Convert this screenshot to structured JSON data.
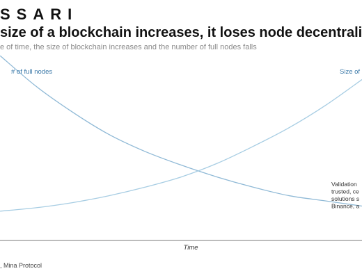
{
  "header": {
    "brand": "SSARI",
    "title": "size of a blockchain increases, it loses node decentraliza",
    "subtitle": "e of time, the size of blockchain increases and the number of full nodes falls"
  },
  "source": ", Mina Protocol",
  "colors": {
    "nodes_series": "#8fb9d6",
    "size_series": "#a7cde3",
    "label_text": "#3a78a8",
    "axis": "#7a7a7a"
  },
  "chart_data": {
    "type": "line",
    "xlabel": "Time",
    "ylabel": "",
    "xlim": [
      0,
      1
    ],
    "ylim": [
      0,
      1
    ],
    "grid": false,
    "series": [
      {
        "name": "# of full nodes",
        "x": [
          0,
          0.1,
          0.2,
          0.3,
          0.4,
          0.5,
          0.6,
          0.7,
          0.8,
          0.9,
          1.0
        ],
        "values": [
          1.0,
          0.82,
          0.67,
          0.54,
          0.44,
          0.36,
          0.29,
          0.23,
          0.18,
          0.15,
          0.12
        ]
      },
      {
        "name": "Size of b",
        "x": [
          0,
          0.1,
          0.2,
          0.3,
          0.4,
          0.5,
          0.6,
          0.7,
          0.8,
          0.9,
          1.0
        ],
        "values": [
          0.09,
          0.11,
          0.14,
          0.18,
          0.23,
          0.29,
          0.37,
          0.47,
          0.58,
          0.71,
          0.86
        ]
      }
    ],
    "annotation": [
      "Validation",
      "trusted, ce",
      "solutions s",
      "Binance, a"
    ]
  }
}
